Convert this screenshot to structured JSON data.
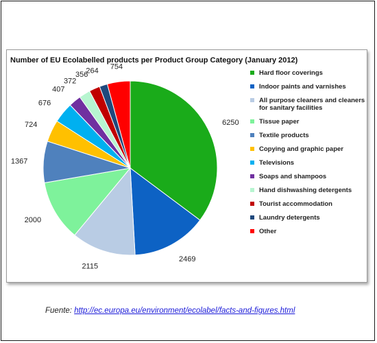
{
  "chart_data": {
    "type": "pie",
    "title": "Number of EU Ecolabelled products per Product Group Category (January 2012)",
    "start_angle": "12 o'clock",
    "direction": "clockwise",
    "legend_position": "right",
    "slices": [
      {
        "label": "Hard floor coverings",
        "legend_label": "Hard floor coverings",
        "value": 6250,
        "color": "#1aab1a"
      },
      {
        "label": "Indoor paints and varnishes",
        "legend_label": "Indoor paints and varnishes",
        "value": 2469,
        "color": "#0d62c4"
      },
      {
        "label": "All purpose cleaners and cleaners for sanitary facilities",
        "legend_label": "All purpose cleaners and cleaners for sanitary facilities",
        "value": 2115,
        "color": "#b9cce4"
      },
      {
        "label": "Tissue paper",
        "legend_label": "Tissue paper",
        "value": 2000,
        "color": "#7ef29b"
      },
      {
        "label": "Textile products",
        "legend_label": "Textile products",
        "value": 1367,
        "color": "#4f81bd"
      },
      {
        "label": "Copying and graphic paper",
        "legend_label": "Copying and graphic paper",
        "value": 724,
        "color": "#ffc000"
      },
      {
        "label": "Televisions",
        "legend_label": "Televisions",
        "value": 676,
        "color": "#00b0f0"
      },
      {
        "label": "Soaps and shampoos",
        "legend_label": "Soaps and shampoos",
        "value": 407,
        "color": "#7030a0"
      },
      {
        "label": "Hand dishwashing detergents",
        "legend_label": "Hand dishwashing detergents",
        "value": 372,
        "color": "#b7f5d0"
      },
      {
        "label": "Tourist accommodation",
        "legend_label": "Tourist accommodation",
        "value": 356,
        "color": "#c00000"
      },
      {
        "label": "Laundry detergents",
        "legend_label": "Laundry detergents",
        "value": 264,
        "color": "#1f497d"
      },
      {
        "label": "Other",
        "legend_label": "Other",
        "value": 754,
        "color": "#ff0000"
      }
    ]
  },
  "source": {
    "prefix": "Fuente: ",
    "url_text": "http://ec.europa.eu/environment/ecolabel/facts-and-figures.html"
  }
}
